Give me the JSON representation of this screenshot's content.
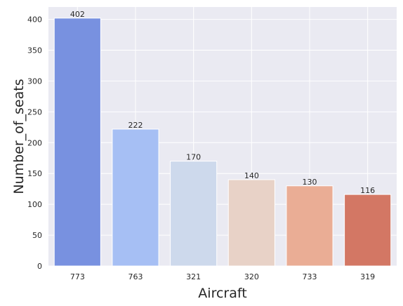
{
  "chart_data": {
    "type": "bar",
    "categories": [
      "773",
      "763",
      "321",
      "320",
      "733",
      "319"
    ],
    "values": [
      402,
      222,
      170,
      140,
      130,
      116
    ],
    "data_labels": [
      "402",
      "222",
      "170",
      "140",
      "130",
      "116"
    ],
    "title": "",
    "xlabel": "Aircraft",
    "ylabel": "Number_of_seats",
    "ylim": [
      0,
      420
    ],
    "yticks": [
      0,
      50,
      100,
      150,
      200,
      250,
      300,
      350,
      400
    ],
    "grid": true,
    "colors": [
      "#7891e0",
      "#a6bff4",
      "#cdd9ec",
      "#e8d2c7",
      "#eaad95",
      "#d37764"
    ],
    "plot_background": "#eaeaf2",
    "grid_color": "#ffffff"
  }
}
